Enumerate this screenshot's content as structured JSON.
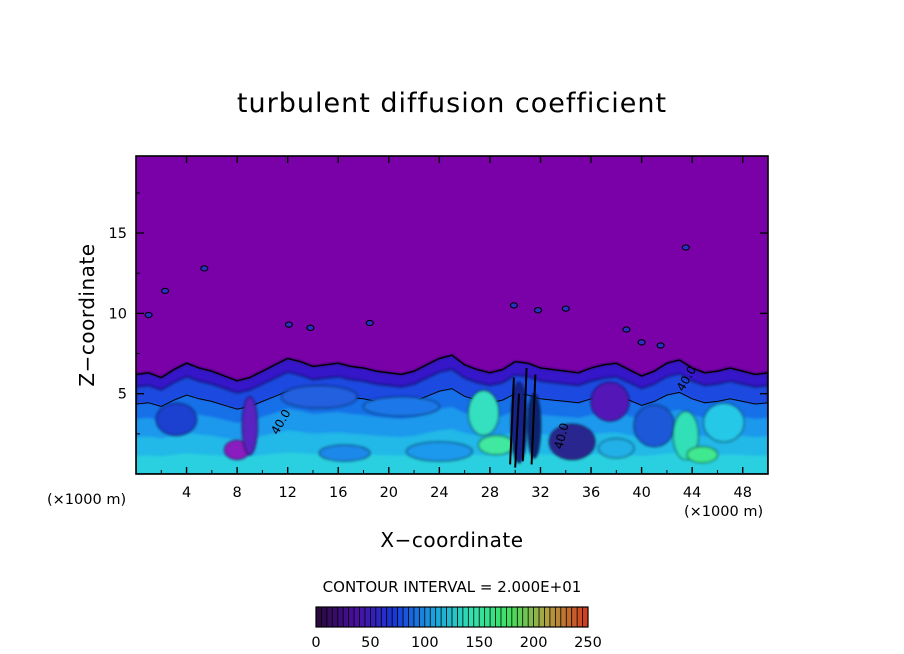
{
  "chart_data": {
    "type": "heatmap",
    "title": "turbulent diffusion coefficient",
    "xlabel": "X−coordinate",
    "ylabel": "Z−coordinate",
    "x_unit_left": "(×1000 m)",
    "x_unit_right": "(×1000 m)",
    "xlim": [
      0,
      50
    ],
    "ylim": [
      0,
      19.8
    ],
    "xticks": [
      4,
      8,
      12,
      16,
      20,
      24,
      28,
      32,
      36,
      40,
      44,
      48
    ],
    "yticks": [
      5,
      10,
      15
    ],
    "contour_interval_label": "CONTOUR INTERVAL = 2.000E+01",
    "contour_labels": [
      "40.0",
      "40.0",
      "40.0"
    ],
    "colorbar": {
      "min": 0,
      "max": 250,
      "ticks": [
        0,
        50,
        100,
        150,
        200,
        250
      ],
      "colors": [
        "#2a0a40",
        "#4a10a0",
        "#1838d8",
        "#1aa0e0",
        "#30e0b0",
        "#40e060",
        "#b0a040",
        "#d04020"
      ]
    },
    "background_color": "#7a00a8",
    "boundary_layer_top_z": [
      6.2,
      6.3,
      6.0,
      6.5,
      6.9,
      6.6,
      6.4,
      6.1,
      5.8,
      6.0,
      6.4,
      6.8,
      7.2,
      7.0,
      6.7,
      6.8,
      6.9,
      6.7,
      6.6,
      6.4,
      6.3,
      6.2,
      6.4,
      6.8,
      7.2,
      7.4,
      6.8,
      6.5,
      6.3,
      6.5,
      7.0,
      6.9,
      6.6,
      6.5,
      6.4,
      6.3,
      6.6,
      6.8,
      6.9,
      6.5,
      6.1,
      6.4,
      6.9,
      7.1,
      6.6,
      6.3,
      6.4,
      6.6,
      6.4,
      6.2,
      6.3
    ]
  }
}
